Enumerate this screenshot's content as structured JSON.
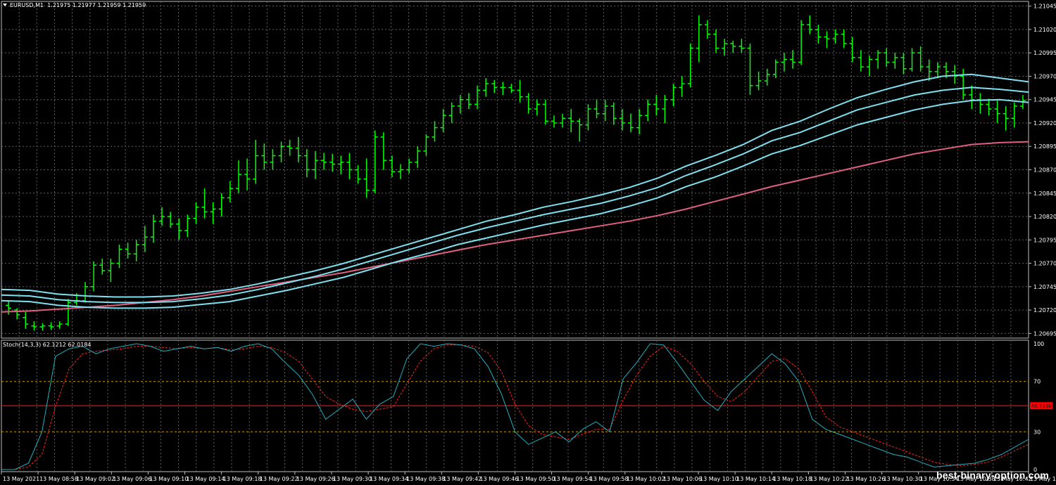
{
  "header": {
    "symbol": "EURUSD,M1",
    "ohlc": "1.21975 1.21977 1.21959 1.21959"
  },
  "stoch": {
    "label": "Stoch(14,3,3) 62.1212 62.0184",
    "levels_label": [
      "100",
      "70",
      "30",
      "0"
    ],
    "current_marker": "50.7100"
  },
  "price_axis": [
    "1.21045",
    "1.21020",
    "1.20995",
    "1.20970",
    "1.20945",
    "1.20920",
    "1.20895",
    "1.20870",
    "1.20845",
    "1.20820",
    "1.20795",
    "1.20770",
    "1.20745",
    "1.20720",
    "1.20695"
  ],
  "time_axis": [
    "13 May 2021",
    "13 May 08:58",
    "13 May 09:02",
    "13 May 09:06",
    "13 May 09:10",
    "13 May 09:14",
    "13 May 09:18",
    "13 May 09:22",
    "13 May 09:26",
    "13 May 09:30",
    "13 May 09:34",
    "13 May 09:38",
    "13 May 09:42",
    "13 May 09:46",
    "13 May 09:50",
    "13 May 09:54",
    "13 May 09:58",
    "13 May 10:02",
    "13 May 10:06",
    "13 May 10:10",
    "13 May 10:14",
    "13 May 10:18",
    "13 May 10:22",
    "13 May 10:26",
    "13 May 10:30",
    "13 May 10:34",
    "13 May 10:38",
    "13 May 10:42",
    "13 May 10:4"
  ],
  "watermark": "best-binary-option.com",
  "colors": {
    "bars": "#00ff00",
    "ma_cyan": "#7fe0f0",
    "ma_pink": "#e06080",
    "stoch_main": "#20b0c0",
    "stoch_signal": "#ff2020",
    "grid": "#606060",
    "midline": "#ff0000",
    "level": "#c0a000"
  },
  "chart_data": {
    "type": "ohlc",
    "ylim": [
      1.2069,
      1.2105
    ],
    "bars": [
      [
        1.20725,
        1.2073,
        1.20715,
        1.20722
      ],
      [
        1.2072,
        1.20722,
        1.2071,
        1.20715
      ],
      [
        1.20712,
        1.20718,
        1.207,
        1.20705
      ],
      [
        1.20703,
        1.20708,
        1.20698,
        1.20702
      ],
      [
        1.20702,
        1.20706,
        1.20698,
        1.20703
      ],
      [
        1.20703,
        1.20707,
        1.20699,
        1.20702
      ],
      [
        1.20703,
        1.20708,
        1.207,
        1.20705
      ],
      [
        1.20705,
        1.20732,
        1.20703,
        1.20728
      ],
      [
        1.20728,
        1.20738,
        1.20725,
        1.2073
      ],
      [
        1.2073,
        1.2075,
        1.20728,
        1.20745
      ],
      [
        1.20745,
        1.20772,
        1.2074,
        1.20768
      ],
      [
        1.20768,
        1.20775,
        1.20758,
        1.20762
      ],
      [
        1.20762,
        1.20775,
        1.2075,
        1.2077
      ],
      [
        1.2077,
        1.2079,
        1.20765,
        1.20785
      ],
      [
        1.20785,
        1.20792,
        1.20775,
        1.2078
      ],
      [
        1.2078,
        1.20795,
        1.20772,
        1.2079
      ],
      [
        1.2079,
        1.2081,
        1.20782,
        1.20798
      ],
      [
        1.20798,
        1.20822,
        1.20792,
        1.20815
      ],
      [
        1.20815,
        1.2083,
        1.2081,
        1.2082
      ],
      [
        1.2082,
        1.20825,
        1.20808,
        1.20812
      ],
      [
        1.20812,
        1.20818,
        1.20795,
        1.20805
      ],
      [
        1.20805,
        1.20822,
        1.20798,
        1.20818
      ],
      [
        1.20818,
        1.20835,
        1.20812,
        1.2083
      ],
      [
        1.2083,
        1.2085,
        1.20818,
        1.20825
      ],
      [
        1.20825,
        1.20835,
        1.20812,
        1.20828
      ],
      [
        1.20828,
        1.20845,
        1.2082,
        1.2084
      ],
      [
        1.2084,
        1.20858,
        1.20835,
        1.2085
      ],
      [
        1.2085,
        1.2088,
        1.20845,
        1.20865
      ],
      [
        1.20865,
        1.20882,
        1.20848,
        1.2086
      ],
      [
        1.2086,
        1.20902,
        1.20855,
        1.20885
      ],
      [
        1.20885,
        1.20898,
        1.2087,
        1.20878
      ],
      [
        1.20878,
        1.20892,
        1.2087,
        1.20885
      ],
      [
        1.20885,
        1.209,
        1.20878,
        1.20895
      ],
      [
        1.20895,
        1.20902,
        1.20885,
        1.20893
      ],
      [
        1.20893,
        1.20905,
        1.20878,
        1.20885
      ],
      [
        1.20885,
        1.20892,
        1.20862,
        1.2087
      ],
      [
        1.2087,
        1.2089,
        1.2086,
        1.2088
      ],
      [
        1.2088,
        1.20888,
        1.2087,
        1.20878
      ],
      [
        1.20878,
        1.20887,
        1.20868,
        1.20876
      ],
      [
        1.20876,
        1.20885,
        1.20865,
        1.20878
      ],
      [
        1.20878,
        1.20888,
        1.2086,
        1.2087
      ],
      [
        1.2087,
        1.20875,
        1.20855,
        1.2086
      ],
      [
        1.2086,
        1.20882,
        1.2084,
        1.20848
      ],
      [
        1.20848,
        1.20912,
        1.20845,
        1.20905
      ],
      [
        1.20905,
        1.2091,
        1.2087,
        1.2088
      ],
      [
        1.2088,
        1.20885,
        1.20862,
        1.20868
      ],
      [
        1.20868,
        1.20876,
        1.2086,
        1.2087
      ],
      [
        1.2087,
        1.20882,
        1.20866,
        1.20878
      ],
      [
        1.20878,
        1.20895,
        1.20872,
        1.2089
      ],
      [
        1.2089,
        1.20908,
        1.20885,
        1.20905
      ],
      [
        1.20905,
        1.20922,
        1.209,
        1.20915
      ],
      [
        1.20915,
        1.20935,
        1.2091,
        1.20928
      ],
      [
        1.20928,
        1.20942,
        1.2092,
        1.20938
      ],
      [
        1.20938,
        1.2095,
        1.2093,
        1.20945
      ],
      [
        1.20945,
        1.20952,
        1.20935,
        1.2094
      ],
      [
        1.2094,
        1.2096,
        1.20935,
        1.20955
      ],
      [
        1.20955,
        1.20968,
        1.20948,
        1.20962
      ],
      [
        1.20962,
        1.20966,
        1.20952,
        1.20958
      ],
      [
        1.20958,
        1.20964,
        1.2095,
        1.20958
      ],
      [
        1.20958,
        1.20962,
        1.20952,
        1.20955
      ],
      [
        1.20955,
        1.20966,
        1.20942,
        1.20948
      ],
      [
        1.20948,
        1.20952,
        1.2093,
        1.20935
      ],
      [
        1.20935,
        1.20945,
        1.20928,
        1.2094
      ],
      [
        1.2094,
        1.20945,
        1.20918,
        1.20922
      ],
      [
        1.20922,
        1.20928,
        1.20915,
        1.2092
      ],
      [
        1.2092,
        1.2093,
        1.20915,
        1.20925
      ],
      [
        1.20925,
        1.20935,
        1.2091,
        1.20922
      ],
      [
        1.20922,
        1.20925,
        1.209,
        1.20918
      ],
      [
        1.20918,
        1.2094,
        1.20912,
        1.20935
      ],
      [
        1.20935,
        1.20945,
        1.20925,
        1.2093
      ],
      [
        1.2093,
        1.20945,
        1.20922,
        1.20938
      ],
      [
        1.20938,
        1.20942,
        1.20918,
        1.20925
      ],
      [
        1.20925,
        1.20935,
        1.20912,
        1.2092
      ],
      [
        1.2092,
        1.2093,
        1.2091,
        1.20915
      ],
      [
        1.20915,
        1.20935,
        1.20908,
        1.20928
      ],
      [
        1.20928,
        1.20945,
        1.20922,
        1.2094
      ],
      [
        1.2094,
        1.2095,
        1.20928,
        1.20935
      ],
      [
        1.20935,
        1.2095,
        1.2092,
        1.20945
      ],
      [
        1.20945,
        1.20962,
        1.20938,
        1.20958
      ],
      [
        1.20958,
        1.2097,
        1.20948,
        1.20962
      ],
      [
        1.20962,
        1.21005,
        1.20958,
        1.21
      ],
      [
        1.21,
        1.21035,
        1.20985,
        1.21025
      ],
      [
        1.21025,
        1.2103,
        1.2101,
        1.21015
      ],
      [
        1.21015,
        1.2102,
        1.20995,
        1.21
      ],
      [
        1.21,
        1.2101,
        1.20992,
        1.21005
      ],
      [
        1.21005,
        1.21008,
        1.20995,
        1.21002
      ],
      [
        1.21002,
        1.2101,
        1.20995,
        1.21
      ],
      [
        1.21,
        1.21005,
        1.2095,
        1.2096
      ],
      [
        1.2096,
        1.20975,
        1.20955,
        1.20965
      ],
      [
        1.20965,
        1.20978,
        1.2096,
        1.20972
      ],
      [
        1.20972,
        1.20988,
        1.20968,
        1.20985
      ],
      [
        1.20985,
        1.20995,
        1.20975,
        1.20988
      ],
      [
        1.20988,
        1.20998,
        1.20978,
        1.20985
      ],
      [
        1.20985,
        1.2103,
        1.20982,
        1.21025
      ],
      [
        1.21025,
        1.21035,
        1.21015,
        1.2102
      ],
      [
        1.2102,
        1.21025,
        1.21005,
        1.21012
      ],
      [
        1.21012,
        1.21018,
        1.21,
        1.2101
      ],
      [
        1.2101,
        1.2102,
        1.21005,
        1.21015
      ],
      [
        1.21015,
        1.2102,
        1.21,
        1.21005
      ],
      [
        1.21005,
        1.21012,
        1.20985,
        1.2099
      ],
      [
        1.2099,
        1.20998,
        1.20975,
        1.2098
      ],
      [
        1.2098,
        1.20992,
        1.2097,
        1.20988
      ],
      [
        1.20988,
        1.20998,
        1.20978,
        1.20995
      ],
      [
        1.20995,
        1.21,
        1.2098,
        1.20985
      ],
      [
        1.20985,
        1.20995,
        1.20978,
        1.2099
      ],
      [
        1.2099,
        1.20995,
        1.20972,
        1.20978
      ],
      [
        1.20978,
        1.21,
        1.20975,
        1.20995
      ],
      [
        1.20995,
        1.21002,
        1.20975,
        1.2098
      ],
      [
        1.2098,
        1.20988,
        1.20965,
        1.20975
      ],
      [
        1.20975,
        1.20985,
        1.20968,
        1.2098
      ],
      [
        1.2098,
        1.20985,
        1.20968,
        1.20975
      ],
      [
        1.20975,
        1.20982,
        1.20962,
        1.2097
      ],
      [
        1.2097,
        1.20978,
        1.20945,
        1.2095
      ],
      [
        1.2095,
        1.2096,
        1.20935,
        1.20945
      ],
      [
        1.20945,
        1.20952,
        1.2093,
        1.2094
      ],
      [
        1.2094,
        1.20946,
        1.20928,
        1.20935
      ],
      [
        1.20935,
        1.20944,
        1.2092,
        1.2093
      ],
      [
        1.2093,
        1.20938,
        1.20912,
        1.20925
      ],
      [
        1.20925,
        1.20942,
        1.20915,
        1.20938
      ],
      [
        1.20938,
        1.2095,
        1.20935,
        1.20944
      ]
    ],
    "ma_cyan_upper": [
      1.20742,
      1.20741,
      1.20737,
      1.20735,
      1.20734,
      1.20734,
      1.20735,
      1.20738,
      1.20742,
      1.20748,
      1.20755,
      1.20762,
      1.2077,
      1.20779,
      1.20788,
      1.20797,
      1.20806,
      1.20815,
      1.20822,
      1.2083,
      1.20836,
      1.20843,
      1.20851,
      1.20861,
      1.20874,
      1.20885,
      1.20897,
      1.20912,
      1.20922,
      1.20935,
      1.20947,
      1.20956,
      1.20964,
      1.2097,
      1.20972,
      1.20968,
      1.20964
    ],
    "ma_cyan_mid": [
      1.20736,
      1.20735,
      1.20731,
      1.20729,
      1.20728,
      1.20728,
      1.20729,
      1.20732,
      1.20736,
      1.20742,
      1.20749,
      1.20756,
      1.20764,
      1.20773,
      1.20782,
      1.20791,
      1.208,
      1.20808,
      1.20815,
      1.20822,
      1.20828,
      1.20834,
      1.20842,
      1.20851,
      1.20864,
      1.20875,
      1.20887,
      1.20901,
      1.2091,
      1.20922,
      1.20934,
      1.20942,
      1.2095,
      1.20955,
      1.20958,
      1.20956,
      1.20953
    ],
    "ma_cyan_lower": [
      1.2073,
      1.20729,
      1.20725,
      1.20723,
      1.20722,
      1.20722,
      1.20723,
      1.20726,
      1.20729,
      1.20735,
      1.20741,
      1.20748,
      1.20755,
      1.20764,
      1.20773,
      1.20781,
      1.2079,
      1.20797,
      1.20804,
      1.20811,
      1.20817,
      1.20823,
      1.20831,
      1.2084,
      1.20852,
      1.20862,
      1.20874,
      1.20887,
      1.20896,
      1.20907,
      1.20918,
      1.20926,
      1.20934,
      1.2094,
      1.20944,
      1.20945,
      1.20942
    ],
    "ma_pink": [
      1.20718,
      1.20719,
      1.20721,
      1.20723,
      1.20725,
      1.20728,
      1.20731,
      1.20735,
      1.2074,
      1.20745,
      1.2075,
      1.20755,
      1.2076,
      1.20766,
      1.20772,
      1.20778,
      1.20784,
      1.2079,
      1.20795,
      1.208,
      1.20805,
      1.2081,
      1.20815,
      1.20821,
      1.20828,
      1.20836,
      1.20844,
      1.20852,
      1.20859,
      1.20866,
      1.20873,
      1.2088,
      1.20887,
      1.20892,
      1.20897,
      1.20899,
      1.209
    ],
    "stoch_main": [
      0,
      0,
      5,
      30,
      90,
      96,
      98,
      92,
      96,
      98,
      100,
      98,
      94,
      96,
      98,
      96,
      97,
      94,
      98,
      100,
      96,
      85,
      75,
      60,
      40,
      48,
      56,
      40,
      52,
      58,
      88,
      100,
      98,
      100,
      99,
      96,
      82,
      60,
      30,
      20,
      25,
      30,
      22,
      32,
      38,
      30,
      72,
      85,
      100,
      99,
      85,
      70,
      55,
      47,
      62,
      72,
      82,
      92,
      84,
      70,
      40,
      32,
      28,
      24,
      20,
      16,
      12,
      10,
      6,
      2,
      3,
      4,
      5,
      8,
      12,
      18,
      24
    ],
    "stoch_signal": [
      0,
      0,
      2,
      12,
      50,
      80,
      92,
      94,
      95,
      96,
      98,
      98,
      97,
      96,
      97,
      96,
      97,
      95,
      96,
      98,
      97,
      93,
      86,
      72,
      58,
      52,
      48,
      46,
      48,
      50,
      68,
      86,
      96,
      99,
      99,
      98,
      93,
      78,
      52,
      35,
      28,
      26,
      24,
      28,
      32,
      32,
      55,
      75,
      90,
      98,
      94,
      84,
      70,
      58,
      54,
      62,
      74,
      86,
      88,
      80,
      62,
      42,
      34,
      30,
      26,
      22,
      18,
      14,
      10,
      6,
      4,
      3,
      4,
      6,
      10,
      15,
      20
    ]
  }
}
